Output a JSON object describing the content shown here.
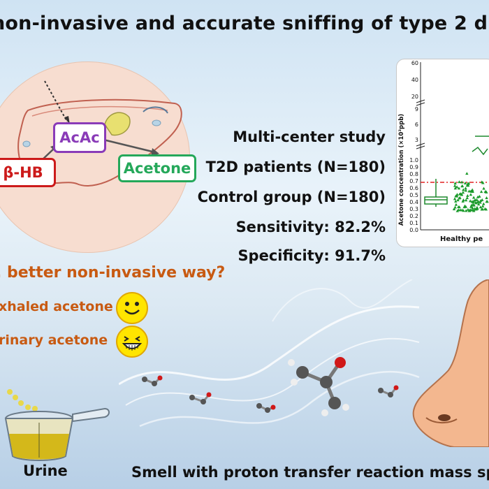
{
  "title": "non-invasive and accurate sniffing of type 2 d",
  "liver": {
    "acac_label": "AcAc",
    "hb_label": "β-HB",
    "acetone_label": "Acetone"
  },
  "stats": [
    "Multi-center study",
    "T2D patients (N=180)",
    "Control group (N=180)",
    "Sensitivity: 82.2%",
    "Specificity: 91.7%"
  ],
  "chart": {
    "ylabel": "Acetone concentration (×10³ppb)",
    "xlabel": "Healthy pe",
    "yticks_upper": [
      "60",
      "40",
      "20"
    ],
    "yticks_middle": [
      "9",
      "6",
      "3"
    ],
    "yticks_lower": [
      "1.0",
      "0.9",
      "0.8",
      "0.7",
      "0.6",
      "0.5",
      "0.4",
      "0.3",
      "0.2",
      "0.1",
      "0.0"
    ],
    "threshold": 0.68,
    "healthy_box": {
      "q1": 0.37,
      "median": 0.43,
      "q3": 0.47,
      "whisker_low": 0.33,
      "whisker_high": 0.73
    },
    "colors": {
      "box": "#1e8a2e",
      "points": "#1a9a2a",
      "threshold": "#e02020"
    }
  },
  "question": ". better non-invasive way?",
  "options": [
    {
      "label": "xhaled acetone",
      "icon": "smiley-icon"
    },
    {
      "label": "rinary acetone",
      "icon": "grinning-icon"
    }
  ],
  "urine_label": "Urine",
  "smell_label": "Smell with proton transfer reaction mass sp"
}
